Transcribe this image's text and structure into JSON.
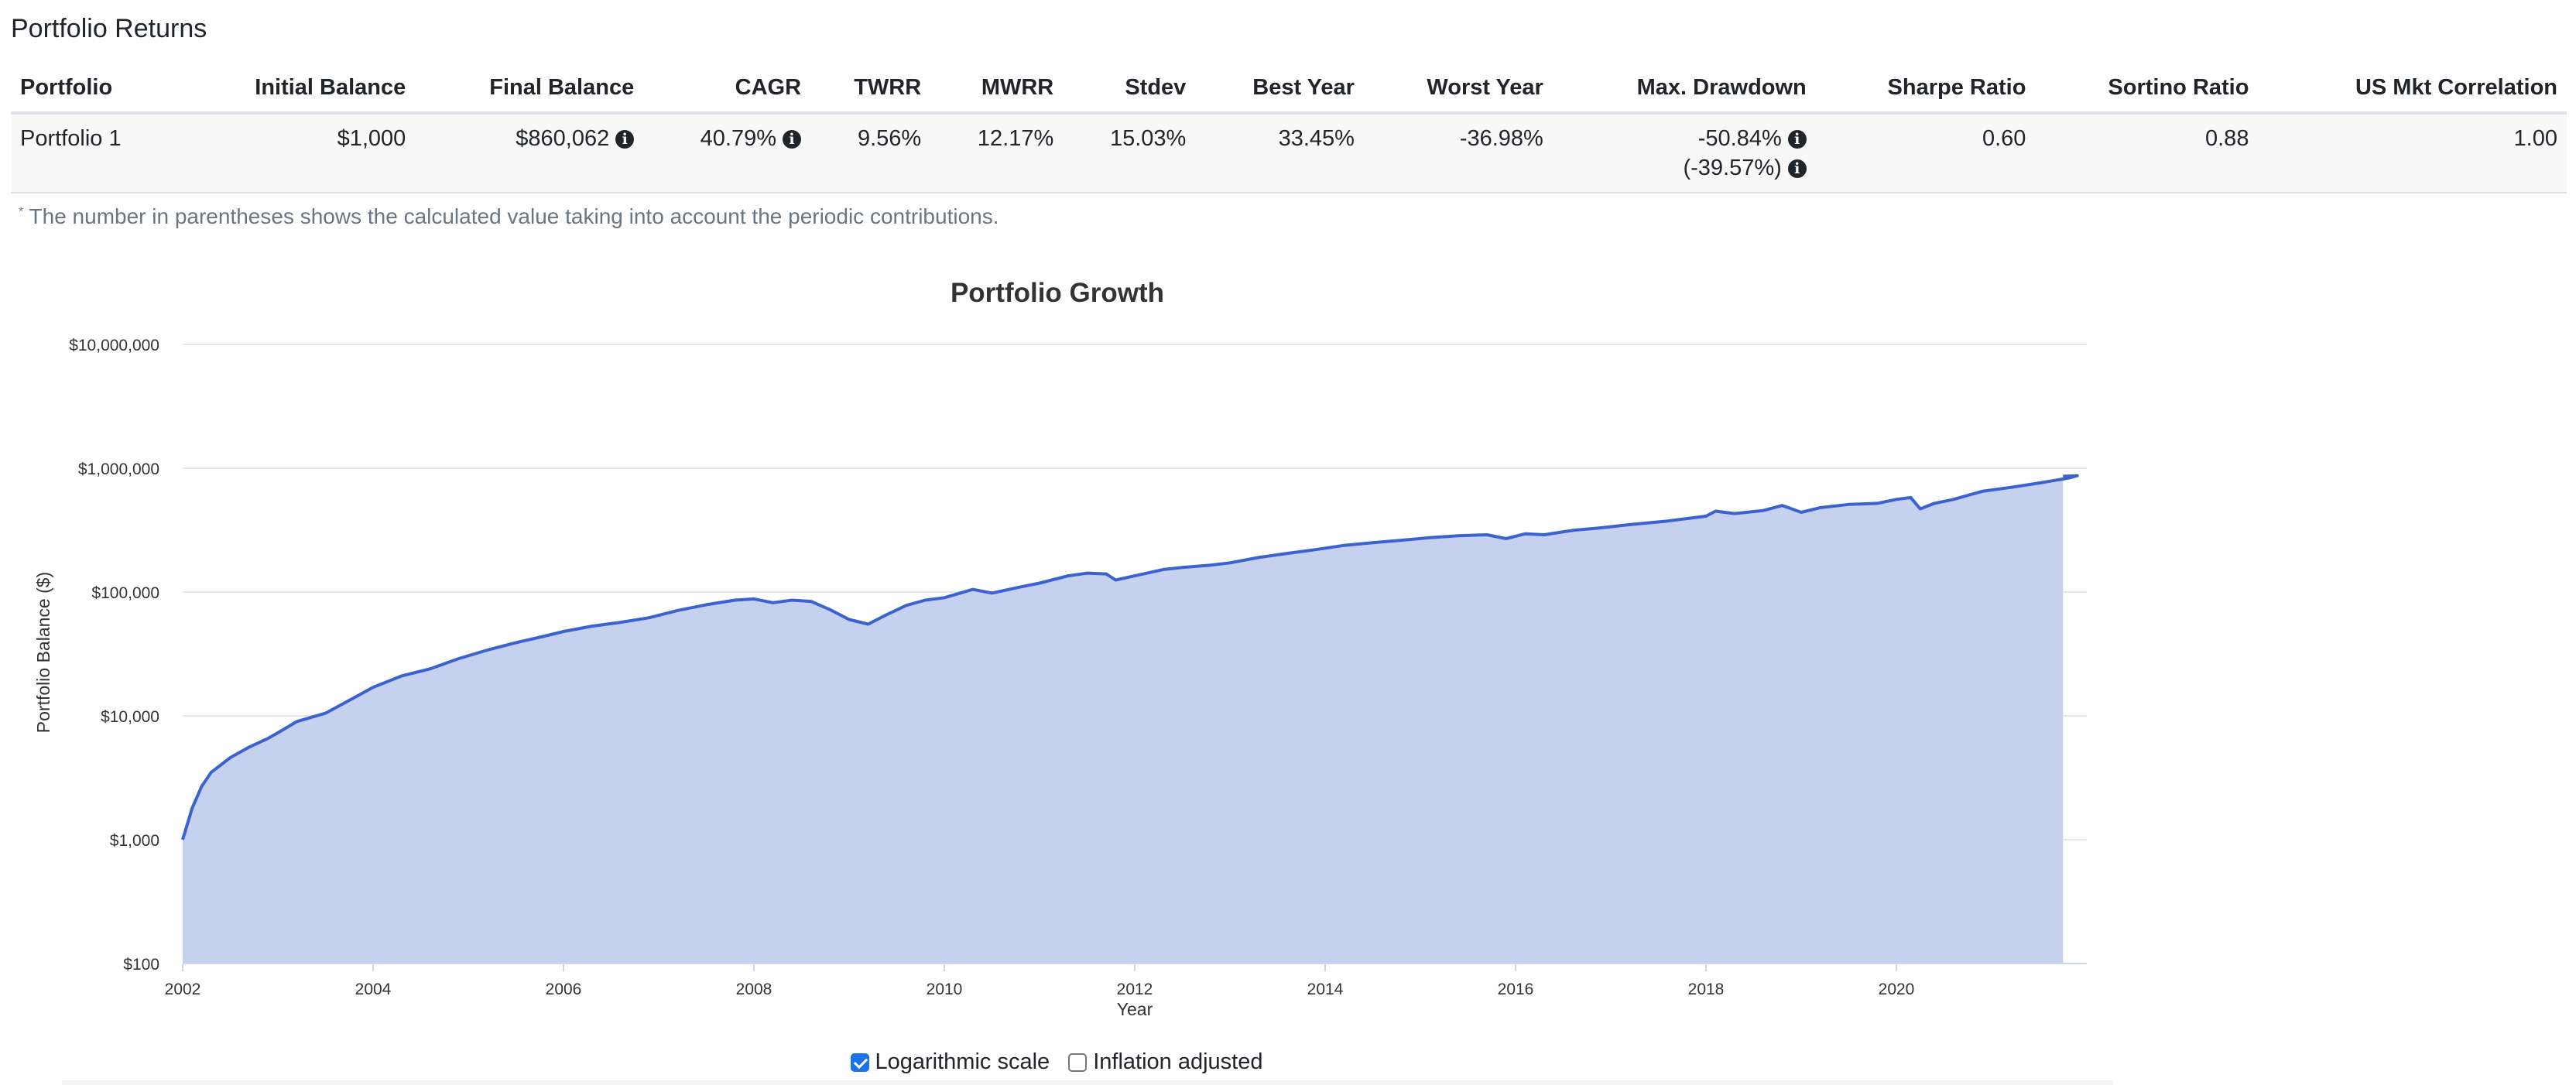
{
  "section_title": "Portfolio Returns",
  "table": {
    "headers": [
      "Portfolio",
      "Initial Balance",
      "Final Balance",
      "CAGR",
      "TWRR",
      "MWRR",
      "Stdev",
      "Best Year",
      "Worst Year",
      "Max. Drawdown",
      "Sharpe Ratio",
      "Sortino Ratio",
      "US Mkt Correlation"
    ],
    "row": {
      "portfolio": "Portfolio 1",
      "initial_balance": "$1,000",
      "final_balance": "$860,062",
      "cagr": "40.79%",
      "twrr": "9.56%",
      "mwrr": "12.17%",
      "stdev": "15.03%",
      "best_year": "33.45%",
      "worst_year": "-36.98%",
      "max_drawdown": "-50.84%",
      "max_drawdown_contrib": "(-39.57%)",
      "sharpe": "0.60",
      "sortino": "0.88",
      "us_mkt_corr": "1.00"
    }
  },
  "footnote": {
    "marker": "*",
    "text": "The number in parentheses shows the calculated value taking into account the periodic contributions."
  },
  "controls": {
    "log_scale_label": "Logarithmic scale",
    "log_scale_checked": true,
    "inflation_label": "Inflation adjusted",
    "inflation_checked": false
  },
  "colors": {
    "line": "#3a62d0",
    "area": "#c6d1ef",
    "grid": "#e6e6e6"
  },
  "chart_data": {
    "type": "area",
    "title": "Portfolio Growth",
    "xlabel": "Year",
    "ylabel": "Portfolio Balance ($)",
    "yscale": "log",
    "ylim": [
      100,
      10000000
    ],
    "xlim": [
      2002,
      2022
    ],
    "yticks": [
      100,
      1000,
      10000,
      100000,
      1000000,
      10000000
    ],
    "ytick_labels": [
      "$100",
      "$1,000",
      "$10,000",
      "$100,000",
      "$1,000,000",
      "$10,000,000"
    ],
    "xticks": [
      2002,
      2004,
      2006,
      2008,
      2010,
      2012,
      2014,
      2016,
      2018,
      2020
    ],
    "grid": true,
    "series": [
      {
        "values": [
          [
            2002.0,
            1000
          ],
          [
            2002.1,
            1800
          ],
          [
            2002.2,
            2700
          ],
          [
            2002.3,
            3500
          ],
          [
            2002.5,
            4600
          ],
          [
            2002.7,
            5600
          ],
          [
            2002.9,
            6600
          ],
          [
            2003.0,
            7300
          ],
          [
            2003.2,
            9000
          ],
          [
            2003.5,
            10500
          ],
          [
            2003.8,
            14000
          ],
          [
            2004.0,
            17000
          ],
          [
            2004.3,
            21000
          ],
          [
            2004.6,
            24000
          ],
          [
            2004.9,
            29000
          ],
          [
            2005.2,
            34000
          ],
          [
            2005.5,
            39000
          ],
          [
            2005.8,
            44000
          ],
          [
            2006.0,
            48000
          ],
          [
            2006.3,
            53000
          ],
          [
            2006.6,
            57000
          ],
          [
            2006.9,
            62000
          ],
          [
            2007.2,
            71000
          ],
          [
            2007.5,
            79000
          ],
          [
            2007.8,
            86000
          ],
          [
            2008.0,
            88000
          ],
          [
            2008.2,
            82000
          ],
          [
            2008.4,
            86000
          ],
          [
            2008.6,
            84000
          ],
          [
            2008.8,
            72000
          ],
          [
            2009.0,
            60000
          ],
          [
            2009.2,
            55000
          ],
          [
            2009.4,
            66000
          ],
          [
            2009.6,
            78000
          ],
          [
            2009.8,
            86000
          ],
          [
            2010.0,
            90000
          ],
          [
            2010.3,
            105000
          ],
          [
            2010.5,
            98000
          ],
          [
            2010.8,
            110000
          ],
          [
            2011.0,
            118000
          ],
          [
            2011.3,
            135000
          ],
          [
            2011.5,
            142000
          ],
          [
            2011.7,
            140000
          ],
          [
            2011.8,
            125000
          ],
          [
            2012.0,
            135000
          ],
          [
            2012.3,
            152000
          ],
          [
            2012.5,
            158000
          ],
          [
            2012.8,
            165000
          ],
          [
            2013.0,
            172000
          ],
          [
            2013.3,
            190000
          ],
          [
            2013.6,
            205000
          ],
          [
            2013.9,
            220000
          ],
          [
            2014.2,
            238000
          ],
          [
            2014.5,
            250000
          ],
          [
            2014.8,
            262000
          ],
          [
            2015.1,
            275000
          ],
          [
            2015.4,
            285000
          ],
          [
            2015.7,
            290000
          ],
          [
            2015.9,
            270000
          ],
          [
            2016.1,
            295000
          ],
          [
            2016.3,
            290000
          ],
          [
            2016.6,
            315000
          ],
          [
            2016.9,
            330000
          ],
          [
            2017.2,
            350000
          ],
          [
            2017.6,
            375000
          ],
          [
            2018.0,
            410000
          ],
          [
            2018.1,
            450000
          ],
          [
            2018.3,
            430000
          ],
          [
            2018.6,
            455000
          ],
          [
            2018.8,
            500000
          ],
          [
            2018.9,
            470000
          ],
          [
            2019.0,
            440000
          ],
          [
            2019.2,
            480000
          ],
          [
            2019.5,
            510000
          ],
          [
            2019.8,
            520000
          ],
          [
            2020.0,
            560000
          ],
          [
            2020.15,
            580000
          ],
          [
            2020.25,
            470000
          ],
          [
            2020.4,
            520000
          ],
          [
            2020.6,
            560000
          ],
          [
            2020.9,
            650000
          ],
          [
            2021.2,
            700000
          ],
          [
            2021.5,
            760000
          ],
          [
            2021.8,
            830000
          ],
          [
            2021.9,
            870000
          ],
          [
            2021.75,
            860000
          ]
        ]
      }
    ]
  }
}
